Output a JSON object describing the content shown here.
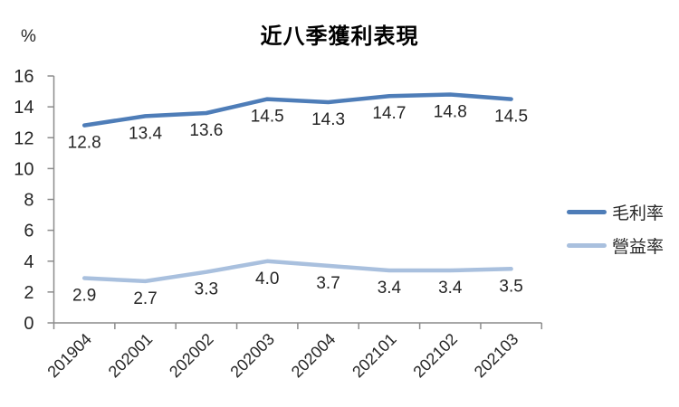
{
  "title": "近八季獲利表現",
  "y_unit_label": "%",
  "chart_data": {
    "type": "line",
    "title": "近八季獲利表現",
    "ylabel": "%",
    "xlabel": "",
    "categories": [
      "201904",
      "202001",
      "202002",
      "202003",
      "202004",
      "202101",
      "202102",
      "202103"
    ],
    "series": [
      {
        "name": "毛利率",
        "color": "#4E7DB8",
        "values": [
          12.8,
          13.4,
          13.6,
          14.5,
          14.3,
          14.7,
          14.8,
          14.5
        ]
      },
      {
        "name": "營益率",
        "color": "#A9C0DE",
        "values": [
          2.9,
          2.7,
          3.3,
          4.0,
          3.7,
          3.4,
          3.4,
          3.5
        ]
      }
    ],
    "ylim": [
      0,
      16
    ],
    "ytick_step": 2,
    "ytick_labels": [
      "0",
      "2",
      "4",
      "6",
      "8",
      "10",
      "12",
      "14",
      "16"
    ],
    "grid": false,
    "data_labels": true,
    "legend_position": "right",
    "axis_color": "#8C8C8C",
    "text_color": "#262626"
  }
}
